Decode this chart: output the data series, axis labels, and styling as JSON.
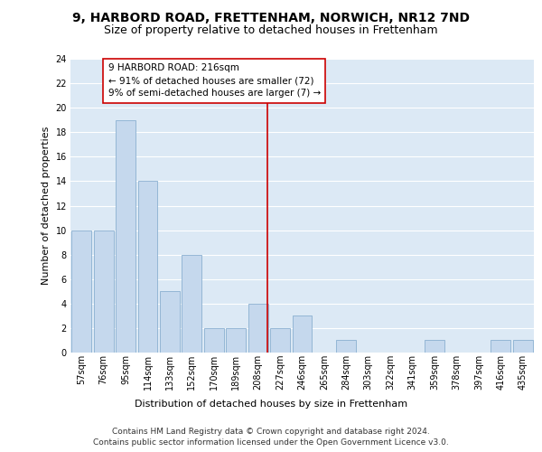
{
  "title": "9, HARBORD ROAD, FRETTENHAM, NORWICH, NR12 7ND",
  "subtitle": "Size of property relative to detached houses in Frettenham",
  "xlabel": "Distribution of detached houses by size in Frettenham",
  "ylabel": "Number of detached properties",
  "categories": [
    "57sqm",
    "76sqm",
    "95sqm",
    "114sqm",
    "133sqm",
    "152sqm",
    "170sqm",
    "189sqm",
    "208sqm",
    "227sqm",
    "246sqm",
    "265sqm",
    "284sqm",
    "303sqm",
    "322sqm",
    "341sqm",
    "359sqm",
    "378sqm",
    "397sqm",
    "416sqm",
    "435sqm"
  ],
  "values": [
    10,
    10,
    19,
    14,
    5,
    8,
    2,
    2,
    4,
    2,
    3,
    0,
    1,
    0,
    0,
    0,
    1,
    0,
    0,
    1,
    1
  ],
  "bar_color": "#c5d8ed",
  "bar_edge_color": "#8aafd0",
  "background_color": "#dce9f5",
  "grid_color": "#ffffff",
  "annotation_text": "9 HARBORD ROAD: 216sqm\n← 91% of detached houses are smaller (72)\n9% of semi-detached houses are larger (7) →",
  "annotation_box_color": "#ffffff",
  "annotation_box_edge": "#cc0000",
  "vline_color": "#cc0000",
  "ylim": [
    0,
    24
  ],
  "yticks": [
    0,
    2,
    4,
    6,
    8,
    10,
    12,
    14,
    16,
    18,
    20,
    22,
    24
  ],
  "footer": "Contains HM Land Registry data © Crown copyright and database right 2024.\nContains public sector information licensed under the Open Government Licence v3.0.",
  "title_fontsize": 10,
  "subtitle_fontsize": 9,
  "ylabel_fontsize": 8,
  "xlabel_fontsize": 8,
  "tick_fontsize": 7,
  "annotation_fontsize": 7.5,
  "footer_fontsize": 6.5
}
